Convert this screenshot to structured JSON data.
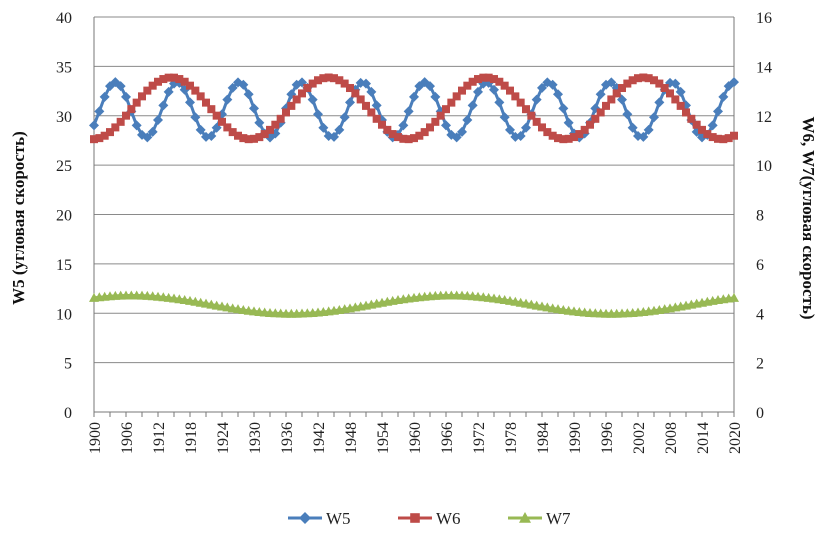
{
  "chart_data": {
    "type": "line",
    "x_start": 1900,
    "x_end": 2020,
    "x_step": 1,
    "x_tick_labels": [
      "1900",
      "1906",
      "1912",
      "1918",
      "1924",
      "1930",
      "1936",
      "1942",
      "1948",
      "1954",
      "1960",
      "1966",
      "1972",
      "1978",
      "1984",
      "1990",
      "1996",
      "2002",
      "2008",
      "2014",
      "2020"
    ],
    "y_left": {
      "label": "W5 (угловая скорость)",
      "min": 0,
      "max": 40,
      "ticks": [
        "0",
        "5",
        "10",
        "15",
        "20",
        "25",
        "30",
        "35",
        "40"
      ]
    },
    "y_right": {
      "label": "W6, W7(угловая скорость)",
      "min": 0,
      "max": 16,
      "ticks": [
        "0",
        "2",
        "4",
        "6",
        "8",
        "10",
        "12",
        "14",
        "16"
      ]
    },
    "grid": "horizontal",
    "legend_position": "bottom",
    "series": [
      {
        "name": "W5",
        "axis": "left",
        "color": "#4a7ebb",
        "marker": "diamond",
        "model": {
          "mean": 30.6,
          "amplitude": 2.8,
          "period": 11.6,
          "peak_year": 1904
        }
      },
      {
        "name": "W6",
        "axis": "right",
        "color": "#be4b48",
        "marker": "square",
        "model": {
          "mean": 12.3,
          "amplitude": 1.25,
          "period": 29.5,
          "peak_year": 1914.5
        }
      },
      {
        "name": "W7",
        "axis": "right",
        "color": "#98b954",
        "marker": "triangle",
        "model": {
          "mean": 4.35,
          "amplitude": 0.37,
          "period": 60,
          "peak_year": 1967
        }
      }
    ]
  }
}
